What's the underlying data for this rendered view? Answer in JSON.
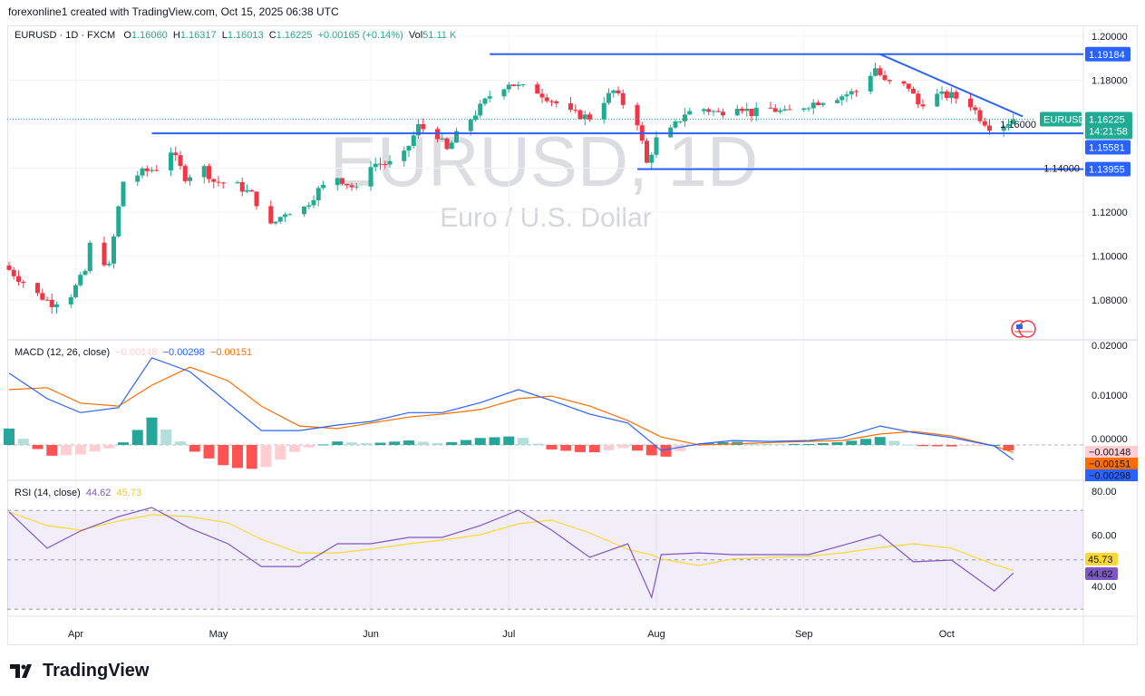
{
  "credit": "forexonline1 created with TradingView.com, Oct 15, 2025 06:38 UTC",
  "legend": {
    "symbol": "EURUSD · 1D · FXCM",
    "o_label": "O",
    "o": "1.16060",
    "h_label": "H",
    "h": "1.16317",
    "l_label": "L",
    "l": "1.16013",
    "c_label": "C",
    "c": "1.16225",
    "change": "+0.00165 (+0.14%)",
    "vol_label": "Vol",
    "vol": "51.11 K"
  },
  "watermark": {
    "title": "EURUSD, 1D",
    "subtitle": "Euro / U.S. Dollar"
  },
  "logo": "TradingView",
  "colors": {
    "up": "#22ab94",
    "down": "#f23645",
    "level": "#2962ff",
    "macd": "#2962ff",
    "signal": "#ff6d00",
    "rsi": "#7e57c2",
    "rsi_ma": "#fdd835",
    "hist_up": "#26a69a",
    "hist_up_light": "#b2dfdb",
    "hist_down": "#ff5252",
    "hist_down_light": "#ffcdd2"
  },
  "chart_data": [
    {
      "type": "candlestick",
      "title": "EURUSD, 1D",
      "ylim": [
        1.065,
        1.205
      ],
      "y_ticks": [
        "1.20000",
        "1.18000",
        "1.16000",
        "1.14000",
        "1.12000",
        "1.10000",
        "1.08000"
      ],
      "x_ticks": [
        {
          "label": "Apr",
          "date": "2025-04-01"
        },
        {
          "label": "May",
          "date": "2025-05-01"
        },
        {
          "label": "Jun",
          "date": "2025-06-02"
        },
        {
          "label": "Jul",
          "date": "2025-07-01"
        },
        {
          "label": "Aug",
          "date": "2025-08-01"
        },
        {
          "label": "Sep",
          "date": "2025-09-01"
        },
        {
          "label": "Oct",
          "date": "2025-10-01"
        }
      ],
      "close_path": [
        [
          "2025-03-18",
          1.0937
        ],
        [
          "2025-03-24",
          1.0825
        ],
        [
          "2025-03-27",
          1.0785
        ],
        [
          "2025-03-31",
          1.0825
        ],
        [
          "2025-04-03",
          1.093
        ],
        [
          "2025-04-04",
          1.105
        ],
        [
          "2025-04-08",
          1.095
        ],
        [
          "2025-04-10",
          1.122
        ],
        [
          "2025-04-11",
          1.134
        ],
        [
          "2025-04-15",
          1.138
        ],
        [
          "2025-04-18",
          1.14
        ],
        [
          "2025-04-21",
          1.148
        ],
        [
          "2025-04-24",
          1.136
        ],
        [
          "2025-04-28",
          1.14
        ],
        [
          "2025-04-30",
          1.134
        ],
        [
          "2025-05-05",
          1.132
        ],
        [
          "2025-05-08",
          1.128
        ],
        [
          "2025-05-12",
          1.1135
        ],
        [
          "2025-05-15",
          1.12
        ],
        [
          "2025-05-19",
          1.122
        ],
        [
          "2025-05-22",
          1.13
        ],
        [
          "2025-05-26",
          1.136
        ],
        [
          "2025-05-30",
          1.13
        ],
        [
          "2025-06-02",
          1.142
        ],
        [
          "2025-06-06",
          1.142
        ],
        [
          "2025-06-09",
          1.146
        ],
        [
          "2025-06-12",
          1.159
        ],
        [
          "2025-06-16",
          1.155
        ],
        [
          "2025-06-18",
          1.148
        ],
        [
          "2025-06-20",
          1.155
        ],
        [
          "2025-06-24",
          1.165
        ],
        [
          "2025-06-27",
          1.173
        ],
        [
          "2025-07-01",
          1.179
        ],
        [
          "2025-07-03",
          1.177
        ],
        [
          "2025-07-07",
          1.175
        ],
        [
          "2025-07-10",
          1.171
        ],
        [
          "2025-07-14",
          1.165
        ],
        [
          "2025-07-18",
          1.163
        ],
        [
          "2025-07-21",
          1.171
        ],
        [
          "2025-07-23",
          1.175
        ],
        [
          "2025-07-28",
          1.161
        ],
        [
          "2025-07-30",
          1.142
        ],
        [
          "2025-08-01",
          1.153
        ],
        [
          "2025-08-04",
          1.157
        ],
        [
          "2025-08-07",
          1.165
        ],
        [
          "2025-08-11",
          1.167
        ],
        [
          "2025-08-14",
          1.165
        ],
        [
          "2025-08-18",
          1.169
        ],
        [
          "2025-08-21",
          1.165
        ],
        [
          "2025-08-25",
          1.167
        ],
        [
          "2025-08-28",
          1.165
        ],
        [
          "2025-09-02",
          1.169
        ],
        [
          "2025-09-05",
          1.171
        ],
        [
          "2025-09-09",
          1.173
        ],
        [
          "2025-09-12",
          1.175
        ],
        [
          "2025-09-16",
          1.1856
        ],
        [
          "2025-09-18",
          1.179
        ],
        [
          "2025-09-23",
          1.177
        ],
        [
          "2025-09-25",
          1.169
        ],
        [
          "2025-09-29",
          1.173
        ],
        [
          "2025-10-02",
          1.173
        ],
        [
          "2025-10-06",
          1.169
        ],
        [
          "2025-10-08",
          1.163
        ],
        [
          "2025-10-10",
          1.159
        ],
        [
          "2025-10-13",
          1.16
        ],
        [
          "2025-10-15",
          1.16225
        ]
      ],
      "last_price": {
        "symbol": "EURUSD",
        "value": "1.16225",
        "countdown": "14:21:58"
      },
      "levels": [
        {
          "value": 1.19184,
          "label": "1.19184",
          "from": "2025-06-27"
        },
        {
          "value": 1.15581,
          "label": "1.15581",
          "from": "2025-04-17"
        },
        {
          "value": 1.13955,
          "label": "1.13955",
          "from": "2025-07-28"
        }
      ],
      "trendline": {
        "from": [
          "2025-09-17",
          1.19184
        ],
        "to": [
          "2025-10-17",
          1.1635
        ]
      }
    },
    {
      "type": "line",
      "title": "MACD (12, 26, close)",
      "values_shown": {
        "histogram": "−0.00148",
        "macd": "−0.00298",
        "signal": "−0.00151"
      },
      "ylim": [
        -0.0036,
        0.0202
      ],
      "y_ticks": [
        "0.02000",
        "0.01000",
        "0.00000"
      ],
      "dates": [
        "2025-03-18",
        "2025-03-26",
        "2025-04-02",
        "2025-04-10",
        "2025-04-17",
        "2025-04-25",
        "2025-05-03",
        "2025-05-10",
        "2025-05-18",
        "2025-05-26",
        "2025-06-02",
        "2025-06-10",
        "2025-06-17",
        "2025-06-25",
        "2025-07-03",
        "2025-07-10",
        "2025-07-18",
        "2025-07-26",
        "2025-08-02",
        "2025-08-10",
        "2025-08-17",
        "2025-08-25",
        "2025-09-02",
        "2025-09-09",
        "2025-09-17",
        "2025-09-24",
        "2025-10-02",
        "2025-10-11",
        "2025-10-15"
      ],
      "series": [
        {
          "name": "MACD",
          "values": [
            0.0144,
            0.0093,
            0.0065,
            0.0075,
            0.0175,
            0.0147,
            0.0084,
            0.0029,
            0.0029,
            0.004,
            0.0047,
            0.0065,
            0.0065,
            0.0085,
            0.0111,
            0.0089,
            0.0062,
            0.0044,
            -0.0011,
            0.0002,
            0.0009,
            0.0007,
            0.0009,
            0.0015,
            0.0038,
            0.0025,
            0.0015,
            -0.0002,
            -0.00298
          ]
        },
        {
          "name": "Signal",
          "values": [
            0.0111,
            0.0115,
            0.0084,
            0.0078,
            0.012,
            0.0156,
            0.0129,
            0.0078,
            0.0038,
            0.0033,
            0.0044,
            0.0056,
            0.0062,
            0.0071,
            0.0093,
            0.0098,
            0.0078,
            0.0049,
            0.0016,
            0.0,
            0.0002,
            0.0005,
            0.0007,
            0.0009,
            0.0022,
            0.0027,
            0.0018,
            -0.0002,
            -0.00151
          ]
        }
      ]
    },
    {
      "type": "line",
      "title": "RSI (14, close)",
      "values_shown": {
        "rsi": "44.62",
        "rsi_ma": "45.73"
      },
      "ylim": [
        26,
        84
      ],
      "y_ticks": [
        "80.00",
        "60.00",
        "40.00"
      ],
      "bands": [
        70,
        50,
        30
      ],
      "dates": [
        "2025-03-18",
        "2025-03-26",
        "2025-04-02",
        "2025-04-10",
        "2025-04-17",
        "2025-04-25",
        "2025-05-03",
        "2025-05-10",
        "2025-05-18",
        "2025-05-26",
        "2025-06-02",
        "2025-06-10",
        "2025-06-17",
        "2025-06-25",
        "2025-07-03",
        "2025-07-10",
        "2025-07-18",
        "2025-07-26",
        "2025-07-31",
        "2025-08-02",
        "2025-08-10",
        "2025-08-17",
        "2025-08-25",
        "2025-09-02",
        "2025-09-09",
        "2025-09-17",
        "2025-09-24",
        "2025-10-02",
        "2025-10-11",
        "2025-10-15"
      ],
      "series": [
        {
          "name": "RSI",
          "values": [
            69.4,
            54.7,
            61.7,
            67.5,
            71.2,
            62.8,
            56.5,
            47.3,
            47.3,
            56.5,
            56.5,
            59.1,
            59.1,
            63.9,
            70.1,
            62.0,
            51.0,
            56.5,
            34.8,
            52.1,
            52.8,
            52.1,
            52.1,
            52.1,
            55.8,
            60.2,
            49.2,
            49.9,
            37.4,
            44.62
          ]
        },
        {
          "name": "RSI MA",
          "values": [
            69.4,
            63.9,
            62.0,
            65.7,
            68.3,
            67.5,
            65.0,
            58.3,
            52.8,
            52.8,
            54.3,
            56.5,
            58.0,
            60.2,
            64.6,
            66.1,
            60.9,
            54.3,
            52.0,
            50.3,
            47.7,
            50.3,
            51.0,
            51.4,
            52.8,
            55.0,
            56.5,
            54.7,
            48.1,
            45.73
          ]
        }
      ]
    }
  ]
}
